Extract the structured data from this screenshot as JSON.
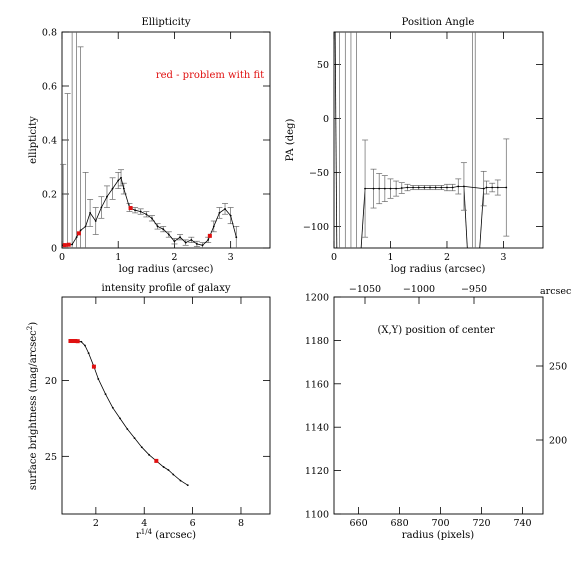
{
  "chart_data": [
    {
      "type": "line",
      "title": "Ellipticity",
      "xlabel": "log radius (arcsec)",
      "ylabel": "ellipticity",
      "xlim": [
        0,
        3.7
      ],
      "ylim": [
        0,
        0.8
      ],
      "xticks": [
        0,
        1,
        2,
        3
      ],
      "yticks": [
        0,
        0.2,
        0.4,
        0.6,
        0.8
      ],
      "annotation": "red - problem with fit",
      "series": [
        {
          "x": [
            0.02,
            0.1,
            0.18,
            0.26,
            0.33,
            0.42,
            0.5,
            0.6,
            0.7,
            0.8,
            0.9,
            1.0,
            1.05,
            1.1,
            1.2,
            1.3,
            1.4,
            1.5,
            1.6,
            1.7,
            1.8,
            1.9,
            2.0,
            2.1,
            2.2,
            2.3,
            2.4,
            2.5,
            2.6,
            2.7,
            2.8,
            2.9,
            3.0,
            3.1
          ],
          "y": [
            0.01,
            0.012,
            0.013,
            0.04,
            0.065,
            0.08,
            0.13,
            0.1,
            0.15,
            0.19,
            0.22,
            0.25,
            0.26,
            0.22,
            0.15,
            0.14,
            0.135,
            0.125,
            0.11,
            0.08,
            0.07,
            0.05,
            0.025,
            0.04,
            0.02,
            0.03,
            0.015,
            0.01,
            0.03,
            0.08,
            0.13,
            0.145,
            0.12,
            0.04
          ],
          "err": [
            0.3,
            0.56,
            0.8,
            0.8,
            0.68,
            0.2,
            0.05,
            0.05,
            0.04,
            0.04,
            0.04,
            0.03,
            0.03,
            0.02,
            0.015,
            0.01,
            0.01,
            0.01,
            0.01,
            0.01,
            0.01,
            0.01,
            0.01,
            0.01,
            0.01,
            0.01,
            0.01,
            0.01,
            0.01,
            0.02,
            0.02,
            0.02,
            0.03,
            0.04
          ]
        }
      ],
      "flagged_x": [
        0.05,
        0.12,
        0.3,
        1.22,
        2.63
      ]
    },
    {
      "type": "line",
      "title": "Position Angle",
      "xlabel": "log radius (arcsec)",
      "ylabel": "PA (deg)",
      "xlim": [
        0,
        3.7
      ],
      "ylim": [
        -120,
        80
      ],
      "xticks": [
        0,
        1,
        2,
        3
      ],
      "yticks": [
        -100,
        -50,
        0,
        50
      ],
      "series": [
        {
          "x": [
            0.55,
            0.7,
            0.8,
            0.9,
            1.0,
            1.1,
            1.2,
            1.3,
            1.4,
            1.5,
            1.6,
            1.7,
            1.8,
            1.9,
            2.0,
            2.1,
            2.2,
            2.3,
            2.65,
            2.7,
            2.8,
            2.9,
            3.05
          ],
          "y": [
            -65,
            -65,
            -65,
            -65,
            -65,
            -65,
            -64.5,
            -64,
            -64,
            -64,
            -64,
            -64,
            -64,
            -64,
            -64,
            -64,
            -63,
            -63,
            -65,
            -64,
            -64,
            -64,
            -64
          ],
          "err": [
            45,
            18,
            14,
            12,
            9,
            7,
            5,
            3,
            2,
            2,
            2,
            2,
            2,
            2,
            3,
            3,
            7,
            22,
            16,
            6,
            4,
            7,
            45
          ]
        }
      ]
    },
    {
      "type": "line",
      "title": "intensity profile of galaxy",
      "xlabel": "r^{1/4} (arcsec)",
      "ylabel": "surface brightness (mag/arcsec^2)",
      "xlim": [
        0.6,
        9.2
      ],
      "ylim": [
        28.8,
        14.5
      ],
      "xticks": [
        2,
        4,
        6,
        8
      ],
      "yticks": [
        20,
        25
      ],
      "series": [
        {
          "x": [
            1.0,
            1.2,
            1.4,
            1.55,
            1.7,
            1.9,
            2.1,
            2.4,
            2.7,
            3.0,
            3.3,
            3.6,
            3.9,
            4.2,
            4.5,
            4.8,
            5.0,
            5.2,
            5.5,
            5.8
          ],
          "y": [
            17.4,
            17.4,
            17.45,
            17.7,
            18.2,
            19.0,
            19.9,
            20.9,
            21.8,
            22.5,
            23.2,
            23.8,
            24.4,
            24.9,
            25.3,
            25.7,
            25.9,
            26.2,
            26.6,
            26.9
          ]
        }
      ],
      "flagged_x": [
        0.95,
        1.05,
        1.15,
        1.25,
        1.92,
        4.5
      ]
    },
    {
      "type": "scatter",
      "title": "(X,Y) position of center",
      "xlabel": "radius (pixels)",
      "xlim": [
        648,
        750
      ],
      "ylim": [
        1100,
        1200
      ],
      "xticks": [
        660,
        680,
        700,
        720,
        740
      ],
      "yticks": [
        1100,
        1120,
        1140,
        1160,
        1180,
        1200
      ],
      "top_axis": {
        "label": "arcsec",
        "ticks": [
          "−1050",
          "−1000",
          "−950"
        ]
      },
      "right_axis": {
        "label": "arcsec",
        "ticks": [
          "250",
          "200"
        ]
      },
      "series": []
    }
  ]
}
